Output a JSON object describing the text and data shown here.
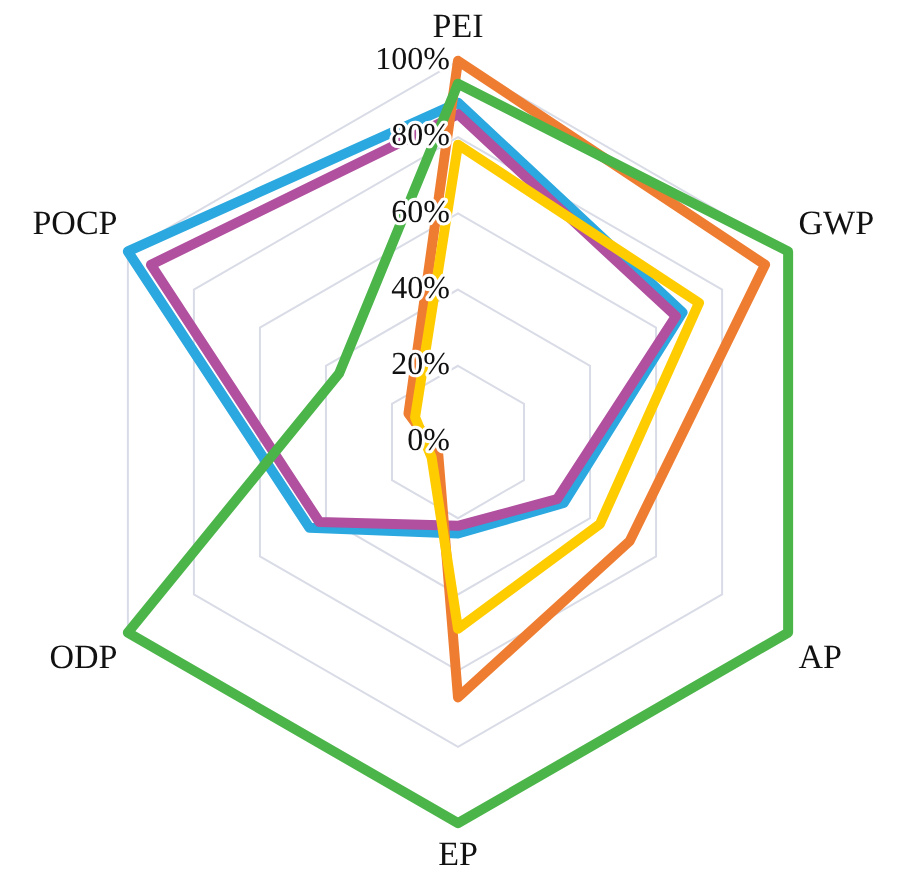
{
  "chart_data": {
    "type": "radar",
    "categories": [
      "PEI",
      "GWP",
      "AP",
      "EP",
      "ODP",
      "POCP"
    ],
    "series": [
      {
        "color": "#4bb54a",
        "values": [
          94,
          100,
          100,
          100,
          100,
          36
        ]
      },
      {
        "color": "#ffcc00",
        "values": [
          78,
          73,
          43,
          49,
          8,
          13
        ]
      },
      {
        "color": "#ef7d31",
        "values": [
          100,
          93,
          52,
          67,
          6,
          15
        ]
      },
      {
        "color": "#b0509f",
        "values": [
          86,
          66,
          30,
          22,
          42,
          93
        ]
      },
      {
        "color": "#2aa8df",
        "values": [
          89,
          68,
          32,
          24,
          45,
          100
        ]
      }
    ],
    "ylim": [
      0,
      100
    ],
    "yticks": [
      {
        "value": 0,
        "label": "0%"
      },
      {
        "value": 20,
        "label": "20%"
      },
      {
        "value": 40,
        "label": "40%"
      },
      {
        "value": 60,
        "label": "60%"
      },
      {
        "value": 80,
        "label": "80%"
      },
      {
        "value": 100,
        "label": "100%"
      }
    ],
    "grid": true,
    "legend": false,
    "marker": "none",
    "line_style": "solid"
  }
}
